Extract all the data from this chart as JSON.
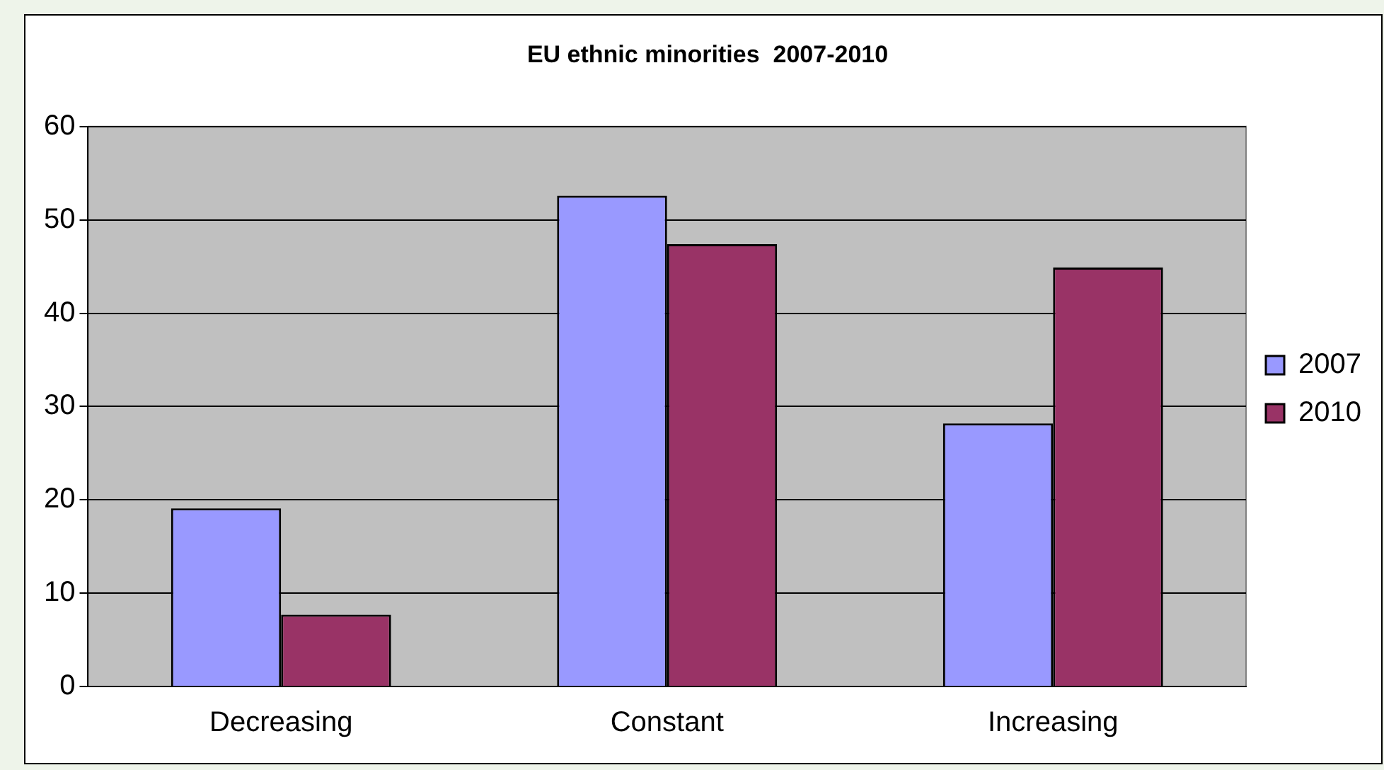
{
  "chart_data": {
    "type": "bar",
    "title": "EU ethnic minorities  2007-2010",
    "categories": [
      "Decreasing",
      "Constant",
      "Increasing"
    ],
    "series": [
      {
        "name": "2007",
        "color": "#9999ff",
        "values": [
          19.1,
          52.6,
          28.2
        ]
      },
      {
        "name": "2010",
        "color": "#993366",
        "values": [
          7.7,
          47.4,
          44.9
        ]
      }
    ],
    "ylim": [
      0,
      60
    ],
    "yticks": [
      0,
      10,
      20,
      30,
      40,
      50,
      60
    ],
    "grid": "y",
    "legend": "right"
  }
}
